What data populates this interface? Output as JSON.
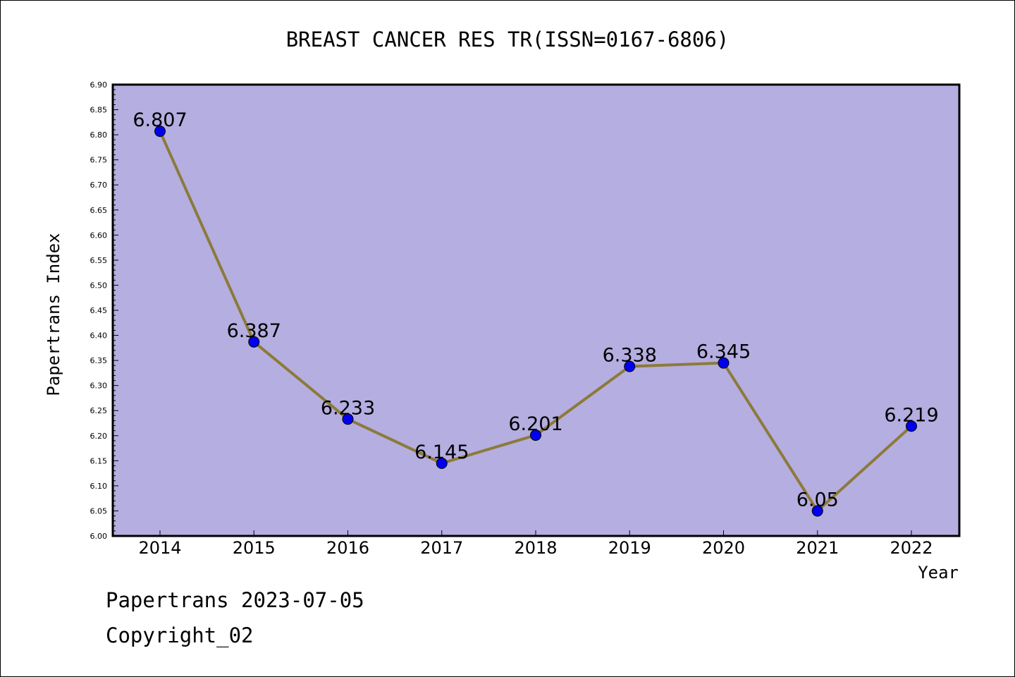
{
  "chart_data": {
    "type": "line",
    "title": "BREAST CANCER RES TR(ISSN=0167-6806)",
    "xlabel": "Year",
    "ylabel": "Papertrans Index",
    "categories": [
      "2014",
      "2015",
      "2016",
      "2017",
      "2018",
      "2019",
      "2020",
      "2021",
      "2022"
    ],
    "series": [
      {
        "values": [
          6.807,
          6.387,
          6.233,
          6.145,
          6.201,
          6.338,
          6.345,
          6.05,
          6.219
        ],
        "labels": [
          "6.807",
          "6.387",
          "6.233",
          "6.145",
          "6.201",
          "6.338",
          "6.345",
          "6.05",
          "6.219"
        ]
      }
    ],
    "ylim": [
      6.0,
      6.9
    ],
    "yticks": [
      "6.00",
      "6.05",
      "6.10",
      "6.15",
      "6.20",
      "6.25",
      "6.30",
      "6.35",
      "6.40",
      "6.45",
      "6.50",
      "6.55",
      "6.60",
      "6.65",
      "6.70",
      "6.75",
      "6.80",
      "6.85",
      "6.90"
    ],
    "grid": false,
    "colors": {
      "plot_background": "#b5aee1",
      "line": "#8c7a3a",
      "marker": "#0000ee"
    }
  },
  "footer": {
    "line1": "Papertrans 2023-07-05",
    "line2": "Copyright_02"
  }
}
